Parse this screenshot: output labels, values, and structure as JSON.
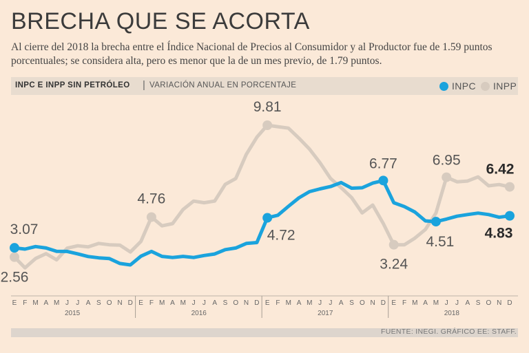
{
  "header": {
    "title": "BRECHA QUE SE ACORTA",
    "subtitle": "Al cierre del 2018 la brecha entre el Índice Nacional de Precios al Consumidor y al Productor fue de 1.59 puntos porcentuales; se considera alta, pero es menor que la de un mes previo, de 1.79 puntos."
  },
  "legend": {
    "label_bold": "INPC E INPP SIN PETRÓLEO",
    "separator": "|",
    "label_light": "VARIACIÓN ANUAL EN PORCENTAJE",
    "inpc": "INPC",
    "inpp": "INPP"
  },
  "source": "FUENTE: INEGI. GRÁFICO EE: STAFF.",
  "colors": {
    "inpc": "#1aa3dd",
    "inpp": "#d7cbbf",
    "background": "#fbe9d8"
  },
  "chart_data": {
    "type": "line",
    "title": "INPC E INPP SIN PETRÓLEO",
    "ylabel": "VARIACIÓN ANUAL EN PORCENTAJE",
    "ylim": [
      1.5,
      10.5
    ],
    "month_labels": [
      "E",
      "F",
      "M",
      "A",
      "M",
      "J",
      "J",
      "A",
      "S",
      "O",
      "N",
      "D",
      "E",
      "F",
      "M",
      "A",
      "M",
      "J",
      "J",
      "A",
      "S",
      "O",
      "N",
      "D",
      "E",
      "F",
      "M",
      "A",
      "M",
      "J",
      "J",
      "A",
      "S",
      "O",
      "N",
      "D",
      "E",
      "F",
      "M",
      "A",
      "M",
      "J",
      "J",
      "A",
      "S",
      "O",
      "N",
      "D"
    ],
    "years": [
      "2015",
      "2016",
      "2017",
      "2018"
    ],
    "series": [
      {
        "name": "INPP",
        "values": [
          2.56,
          1.97,
          2.48,
          2.75,
          2.41,
          3.05,
          3.18,
          3.12,
          3.31,
          3.24,
          3.22,
          2.84,
          3.42,
          4.76,
          4.28,
          4.4,
          5.18,
          5.64,
          5.55,
          5.64,
          6.56,
          6.88,
          8.21,
          9.15,
          9.81,
          9.73,
          9.65,
          9.1,
          8.5,
          7.75,
          6.88,
          6.38,
          5.83,
          4.99,
          5.42,
          4.41,
          3.24,
          3.24,
          3.6,
          4.08,
          4.98,
          6.95,
          6.7,
          6.74,
          6.97,
          6.48,
          6.55,
          6.42
        ],
        "labels": [
          {
            "index": 0,
            "text": "2.56"
          },
          {
            "index": 13,
            "text": "4.76"
          },
          {
            "index": 24,
            "text": "9.81"
          },
          {
            "index": 36,
            "text": "3.24"
          },
          {
            "index": 41,
            "text": "6.95"
          },
          {
            "index": 47,
            "text": "6.42"
          }
        ]
      },
      {
        "name": "INPC",
        "values": [
          3.07,
          3.0,
          3.14,
          3.06,
          2.88,
          2.87,
          2.74,
          2.59,
          2.52,
          2.48,
          2.21,
          2.13,
          2.61,
          2.87,
          2.6,
          2.54,
          2.6,
          2.54,
          2.65,
          2.73,
          2.97,
          3.06,
          3.31,
          3.36,
          4.72,
          4.86,
          5.35,
          5.82,
          6.16,
          6.31,
          6.44,
          6.66,
          6.35,
          6.37,
          6.63,
          6.77,
          5.55,
          5.34,
          5.04,
          4.55,
          4.51,
          4.65,
          4.81,
          4.9,
          4.98,
          4.9,
          4.75,
          4.83
        ],
        "labels": [
          {
            "index": 0,
            "text": "3.07"
          },
          {
            "index": 24,
            "text": "4.72"
          },
          {
            "index": 35,
            "text": "6.77"
          },
          {
            "index": 40,
            "text": "4.51"
          },
          {
            "index": 47,
            "text": "4.83"
          }
        ]
      }
    ]
  }
}
